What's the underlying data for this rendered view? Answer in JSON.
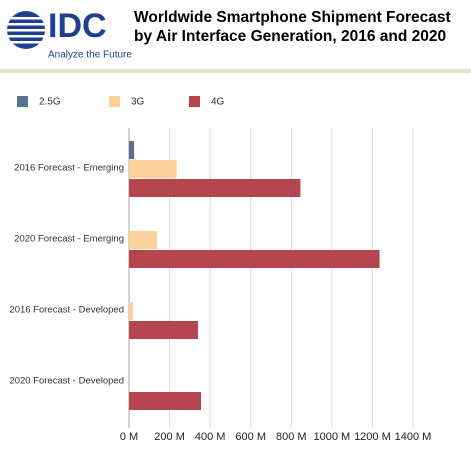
{
  "logo": {
    "name": "IDC",
    "tagline": "Analyze the Future"
  },
  "chart_data": {
    "type": "hbar",
    "title": "Worldwide Smartphone Shipment Forecast by Air Interface Generation, 2016 and 2020",
    "categories": [
      "2016 Forecast - Emerging",
      "2020 Forecast - Emerging",
      "2016 Forecast - Developed",
      "2020 Forecast - Developed"
    ],
    "series": [
      {
        "name": "2.5G",
        "color": "#5b6f93",
        "values": [
          25,
          0,
          0,
          0
        ]
      },
      {
        "name": "3G",
        "color": "#fdd19c",
        "values": [
          235,
          138,
          20,
          0
        ]
      },
      {
        "name": "4G",
        "color": "#b54650",
        "values": [
          845,
          1235,
          340,
          355
        ]
      }
    ],
    "xlim": [
      0,
      1400
    ],
    "xticks": [
      {
        "value": 0,
        "label": "0 M"
      },
      {
        "value": 200,
        "label": "200 M"
      },
      {
        "value": 400,
        "label": "400 M"
      },
      {
        "value": 600,
        "label": "600 M"
      },
      {
        "value": 800,
        "label": "800 M"
      },
      {
        "value": 1000,
        "label": "1000 M"
      },
      {
        "value": 1200,
        "label": "1200 M"
      },
      {
        "value": 1400,
        "label": "1400 M"
      }
    ],
    "grid": true,
    "legend": "top"
  }
}
